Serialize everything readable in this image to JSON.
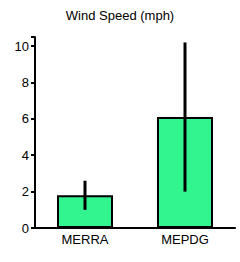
{
  "chart_data": {
    "type": "bar",
    "title": "Wind Speed (mph)",
    "categories": [
      "MERRA",
      "MEPDG"
    ],
    "values": [
      1.8,
      6.1
    ],
    "error_low": [
      1.0,
      2.0
    ],
    "error_high": [
      2.6,
      10.2
    ],
    "color": "#33f590",
    "ylim": [
      0,
      10.5
    ],
    "yticks": [
      0,
      2,
      4,
      6,
      8,
      10
    ],
    "grid": false
  }
}
